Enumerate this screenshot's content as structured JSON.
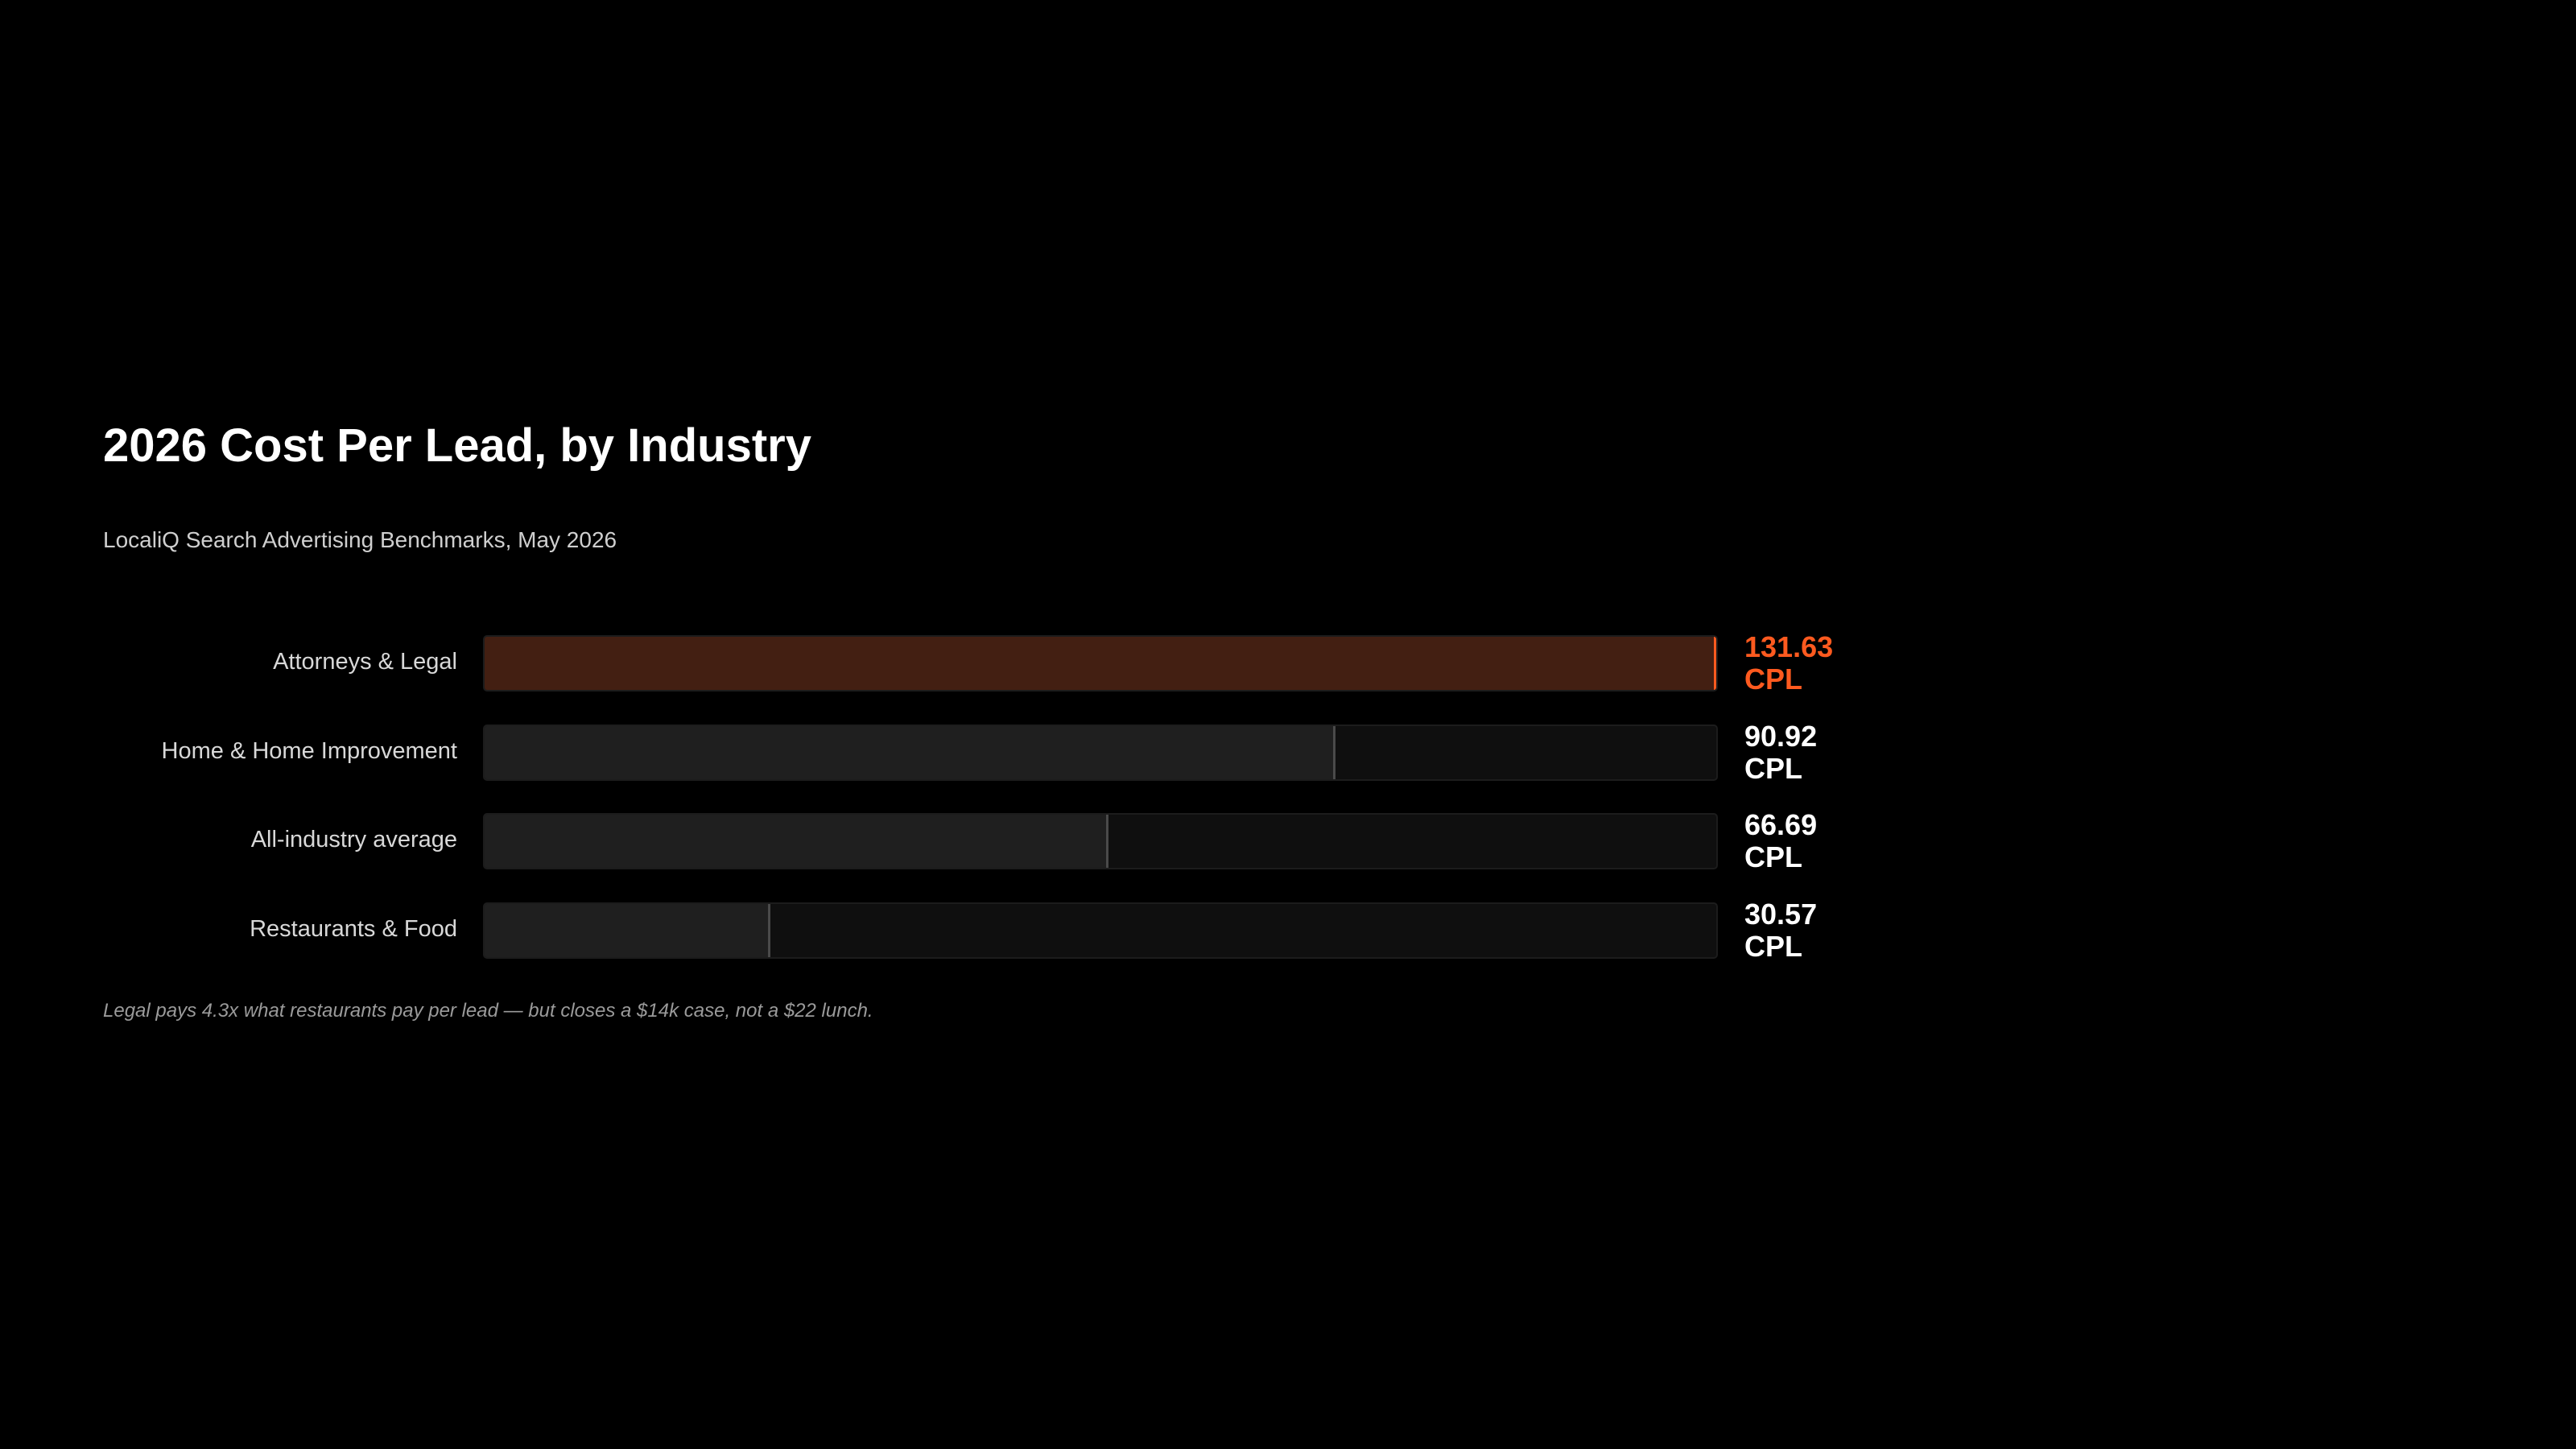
{
  "chart_data": {
    "type": "bar",
    "orientation": "horizontal",
    "title": "2026 Cost Per Lead, by Industry",
    "subtitle": "LocaliQ Search Advertising Benchmarks, May 2026",
    "categories": [
      "Attorneys & Legal",
      "Home & Home Improvement",
      "All-industry average",
      "Restaurants & Food"
    ],
    "values": [
      131.63,
      90.92,
      66.69,
      30.57
    ],
    "value_labels": [
      "131.63 CPL",
      "90.92 CPL",
      "66.69 CPL",
      "30.57 CPL"
    ],
    "colors": [
      "#ff5a1f",
      "#4a4a4a",
      "#4a4a4a",
      "#4a4a4a"
    ],
    "annotation": "Legal pays 4.3x what restaurants pay per lead — but closes a $14k case, not a $22 lunch."
  }
}
